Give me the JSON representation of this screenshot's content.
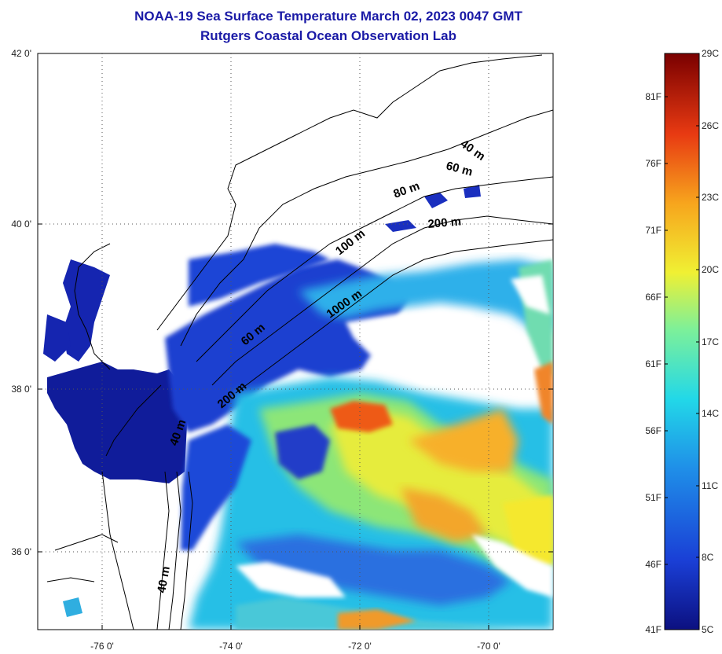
{
  "title": {
    "line1": "NOAA-19 Sea Surface Temperature March 02, 2023 0047 GMT",
    "line2": "Rutgers Coastal Ocean Observation Lab"
  },
  "map": {
    "lat_ticks": [
      "42 0'",
      "40 0'",
      "38 0'",
      "36 0'"
    ],
    "lon_ticks": [
      "-76 0'",
      "-74 0'",
      "-72 0'",
      "-70 0'"
    ],
    "bathymetry_labels": [
      "40 m",
      "60 m",
      "80 m",
      "200 m",
      "100 m",
      "1000 m",
      "60 m",
      "200 m",
      "40 m",
      "40 m"
    ]
  },
  "colorbar": {
    "fahrenheit": [
      "81F",
      "76F",
      "71F",
      "66F",
      "61F",
      "56F",
      "51F",
      "46F",
      "41F"
    ],
    "celsius": [
      "29C",
      "26C",
      "23C",
      "20C",
      "17C",
      "14C",
      "11C",
      "8C",
      "5C"
    ],
    "colors": [
      "#0c1080",
      "#1a3fd6",
      "#1f8fe8",
      "#22d8e8",
      "#7cf09a",
      "#f0f033",
      "#f7a51d",
      "#e83a12",
      "#7a0000"
    ]
  }
}
